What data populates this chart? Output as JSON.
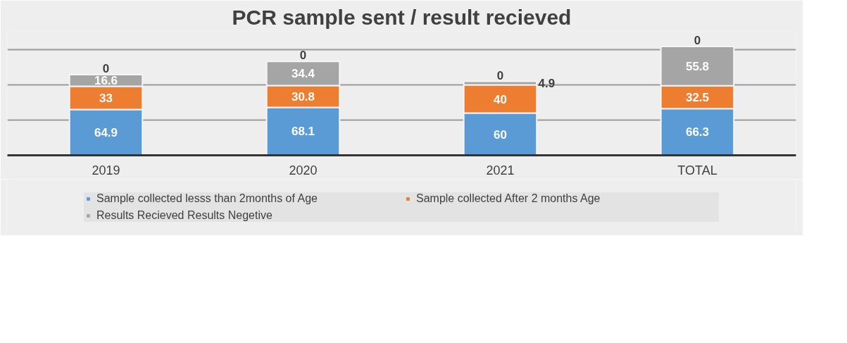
{
  "chart_data": {
    "type": "bar",
    "title": "PCR sample sent / result recieved",
    "categories": [
      "2019",
      "2020",
      "2021",
      "TOTAL"
    ],
    "stacked": true,
    "data_labels": true,
    "ylim": [
      0,
      175
    ],
    "yticks": [
      {
        "value": 0,
        "label": null
      },
      {
        "value": 50,
        "label": null
      },
      {
        "value": 100,
        "label": null
      },
      {
        "value": 150,
        "label": null
      }
    ],
    "tick_labels": "x",
    "grid": "y",
    "legend": "bottom",
    "series": [
      {
        "name": "Sample collected lesss than 2months of Age",
        "color": "#5b9bd5",
        "values": [
          64.9,
          68.1,
          60,
          66.3
        ]
      },
      {
        "name": "Sample collected After 2 months Age",
        "color": "#ed7d31",
        "values": [
          33,
          30.8,
          40,
          32.5
        ]
      },
      {
        "name": "Results Recieved Results Negetive",
        "color": "#a5a5a5",
        "values": [
          16.6,
          34.4,
          4.9,
          55.8
        ]
      }
    ],
    "annotations": [
      {
        "text": "0",
        "x": "2019",
        "y": 114.5
      },
      {
        "text": "0",
        "x": "2020",
        "y": 133.3
      },
      {
        "text": "0",
        "x": "2021",
        "y": 104.9
      },
      {
        "text": "0",
        "x": "TOTAL",
        "y": 154.6
      }
    ]
  }
}
